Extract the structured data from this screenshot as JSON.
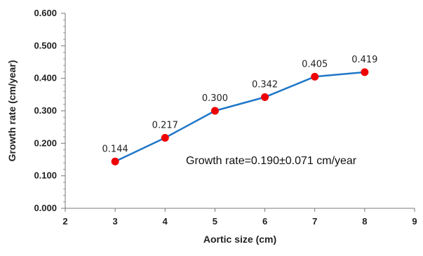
{
  "chart_data": {
    "type": "line",
    "title": "",
    "xlabel": "Aortic size (cm)",
    "ylabel": "Growth rate (cm/year)",
    "xlim": [
      2,
      9
    ],
    "ylim": [
      0,
      0.6
    ],
    "x_ticks": [
      "2",
      "3",
      "4",
      "5",
      "6",
      "7",
      "8",
      "9"
    ],
    "y_ticks": [
      "0.000",
      "0.100",
      "0.200",
      "0.300",
      "0.400",
      "0.500",
      "0.600"
    ],
    "grid": false,
    "series": [
      {
        "x": [
          3,
          4,
          5,
          6,
          7,
          8
        ],
        "y": [
          0.144,
          0.217,
          0.3,
          0.342,
          0.405,
          0.419
        ],
        "data_labels": [
          "0.144",
          "0.217",
          "0.300",
          "0.342",
          "0.405",
          "0.419"
        ],
        "line_color": "#1f77c8",
        "marker_color": "#ee0000"
      }
    ],
    "annotation": "Growth rate=0.190±0.071 cm/year"
  }
}
